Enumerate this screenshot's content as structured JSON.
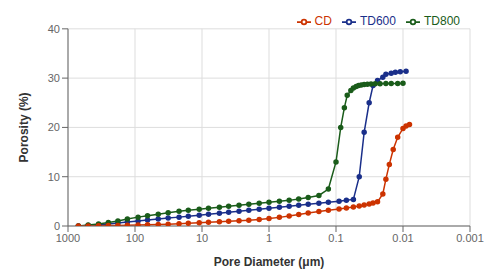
{
  "chart_data": {
    "type": "line",
    "xlabel": "Pore Diameter (μm)",
    "ylabel": "Porosity (%)",
    "log": "x",
    "xlim": [
      1000,
      0.001
    ],
    "xticks": [
      1000,
      100,
      10,
      1,
      0.1,
      0.01,
      0.001
    ],
    "ylim": [
      0,
      40
    ],
    "yticks": [
      0,
      10,
      20,
      30,
      40
    ],
    "grid": true,
    "legend": "upper right",
    "marker": "circle",
    "series": [
      {
        "name": "TD600",
        "color": "#1a2f8a",
        "x": [
          700,
          500,
          350,
          250,
          180,
          130,
          90,
          65,
          45,
          32,
          22,
          16,
          11,
          8,
          5.5,
          4.0,
          2.8,
          2.0,
          1.4,
          1.0,
          0.7,
          0.5,
          0.36,
          0.26,
          0.18,
          0.13,
          0.09,
          0.07,
          0.055,
          0.045,
          0.038,
          0.032,
          0.028,
          0.024,
          0.02,
          0.018,
          0.015,
          0.013,
          0.011,
          0.009
        ],
        "values": [
          0.0,
          0.1,
          0.2,
          0.4,
          0.6,
          0.8,
          1.0,
          1.2,
          1.4,
          1.6,
          1.8,
          2.0,
          2.2,
          2.4,
          2.6,
          2.8,
          3.0,
          3.2,
          3.4,
          3.6,
          3.8,
          4.0,
          4.2,
          4.4,
          4.6,
          4.8,
          5.0,
          5.2,
          5.4,
          10.0,
          19.0,
          25.0,
          28.5,
          29.5,
          30.2,
          30.8,
          31.0,
          31.2,
          31.3,
          31.4
        ]
      },
      {
        "name": "TD800",
        "color": "#1a5c1a",
        "x": [
          700,
          500,
          350,
          250,
          180,
          130,
          90,
          65,
          45,
          32,
          22,
          16,
          11,
          8,
          5.5,
          4.0,
          2.8,
          2.0,
          1.4,
          1.0,
          0.7,
          0.5,
          0.36,
          0.26,
          0.18,
          0.13,
          0.1,
          0.085,
          0.075,
          0.068,
          0.06,
          0.055,
          0.05,
          0.046,
          0.042,
          0.038,
          0.034,
          0.03,
          0.026,
          0.022,
          0.018,
          0.015,
          0.012,
          0.01
        ],
        "values": [
          0.0,
          0.2,
          0.4,
          0.7,
          1.0,
          1.4,
          1.8,
          2.1,
          2.4,
          2.7,
          3.0,
          3.2,
          3.4,
          3.6,
          3.8,
          4.0,
          4.2,
          4.4,
          4.6,
          4.8,
          5.0,
          5.2,
          5.5,
          5.8,
          6.2,
          7.5,
          13.0,
          20.0,
          24.0,
          26.5,
          27.5,
          28.0,
          28.3,
          28.5,
          28.6,
          28.7,
          28.75,
          28.8,
          28.85,
          28.88,
          28.9,
          28.92,
          28.93,
          28.94
        ]
      },
      {
        "name": "CD",
        "color": "#cc3300",
        "x": [
          700,
          500,
          350,
          250,
          180,
          130,
          90,
          65,
          45,
          32,
          22,
          16,
          11,
          8,
          5.5,
          4.0,
          2.8,
          2.0,
          1.4,
          1.0,
          0.7,
          0.5,
          0.36,
          0.26,
          0.18,
          0.13,
          0.09,
          0.07,
          0.055,
          0.045,
          0.038,
          0.032,
          0.028,
          0.024,
          0.02,
          0.018,
          0.016,
          0.014,
          0.012,
          0.01,
          0.009,
          0.008
        ],
        "values": [
          0.0,
          0.02,
          0.05,
          0.08,
          0.12,
          0.16,
          0.2,
          0.25,
          0.3,
          0.38,
          0.45,
          0.55,
          0.65,
          0.75,
          0.85,
          0.95,
          1.05,
          1.15,
          1.3,
          1.5,
          1.75,
          2.05,
          2.35,
          2.65,
          2.95,
          3.2,
          3.45,
          3.65,
          3.85,
          4.05,
          4.25,
          4.45,
          4.65,
          4.9,
          6.5,
          9.5,
          12.5,
          15.5,
          18.0,
          19.8,
          20.3,
          20.6
        ]
      }
    ]
  }
}
